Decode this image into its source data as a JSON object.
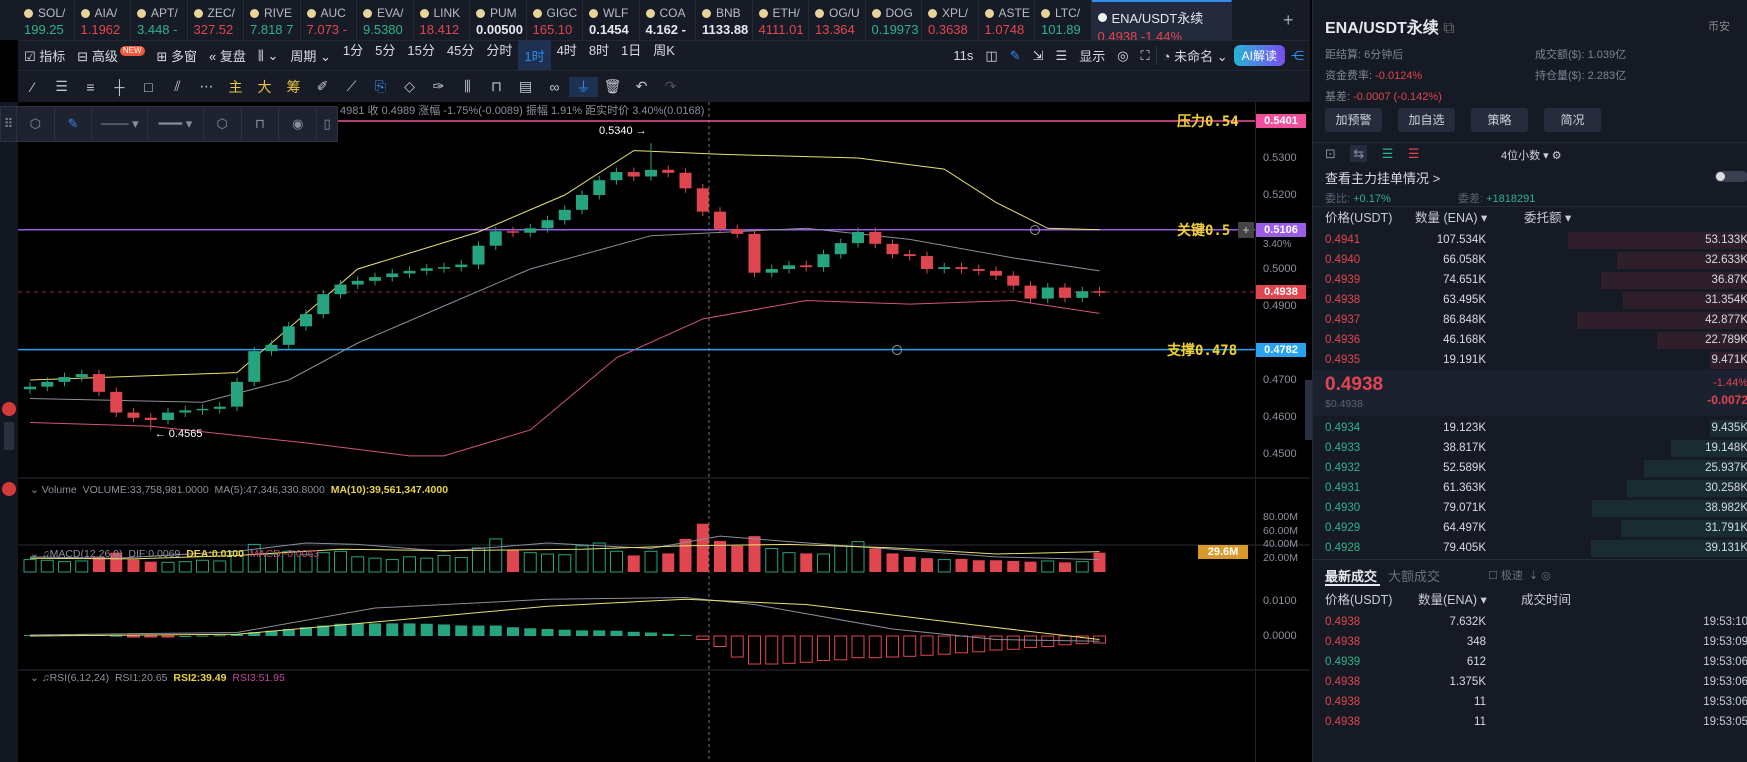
{
  "tickers": [
    {
      "name": "SOL/",
      "price": "199.25",
      "color": "g"
    },
    {
      "name": "AIA/",
      "price": "1.1962",
      "color": "r",
      "badge": "NEW"
    },
    {
      "name": "APT/",
      "price": "3.448 -",
      "color": "g"
    },
    {
      "name": "ZEC/",
      "price": "327.52",
      "color": "r"
    },
    {
      "name": "RIVE",
      "price": "7.818 7",
      "color": "g"
    },
    {
      "name": "AUC",
      "price": "7.073 -",
      "color": "r"
    },
    {
      "name": "EVA/",
      "price": "9.5380",
      "color": "g"
    },
    {
      "name": "LINK",
      "price": "18.412",
      "color": "r"
    },
    {
      "name": "PUM",
      "price": "0.00500",
      "color": "w"
    },
    {
      "name": "GIGC",
      "price": "165.10",
      "color": "r"
    },
    {
      "name": "WLF",
      "price": "0.1454",
      "color": "w"
    },
    {
      "name": "COA",
      "price": "4.162 -",
      "color": "w"
    },
    {
      "name": "BNB",
      "price": "1133.88",
      "color": "w"
    },
    {
      "name": "ETH/",
      "price": "4111.01",
      "color": "r"
    },
    {
      "name": "OG/U",
      "price": "13.364",
      "color": "r"
    },
    {
      "name": "DOG",
      "price": "0.19973",
      "color": "g"
    },
    {
      "name": "XPL/",
      "price": "0.3638",
      "color": "r"
    },
    {
      "name": "ASTE",
      "price": "1.0748",
      "color": "r"
    },
    {
      "name": "LTC/",
      "price": "101.89",
      "color": "g"
    }
  ],
  "active_ticker": {
    "name": "ENA/USDT永续",
    "price": "0.4938",
    "change": "-1.44%"
  },
  "toolbar": {
    "indicator": "指标",
    "advanced": "高级",
    "new_badge": "NEW",
    "multi": "多窗",
    "replay": "复盘",
    "period": "周期",
    "intervals": [
      "1分",
      "5分",
      "15分",
      "45分",
      "分时",
      "1时",
      "4时",
      "8时",
      "1日",
      "周K"
    ],
    "selected_interval": "1时",
    "countdown": "11s",
    "display": "显示",
    "layout": "未命名",
    "ai": "AI解读"
  },
  "draw_tools": {
    "main": "主",
    "big": "大",
    "chip": "筹"
  },
  "info_line": "4981 收 0.4989 涨幅 -1.75%(-0.0089) 振幅 1.91% 距实时价 3.40%(0.0168)",
  "levels": [
    {
      "label": "压力0.54",
      "value": 0.54,
      "tag": "0.5401",
      "color": "#f0509a"
    },
    {
      "label": "关键0.5",
      "value": 0.5106,
      "tag": "0.5106",
      "color": "#9b5de5"
    },
    {
      "label": "支撑0.478",
      "value": 0.4782,
      "tag": "0.4782",
      "color": "#29a3f0"
    }
  ],
  "price_axis": [
    "0.5300",
    "0.5200",
    "0.5000",
    "0.4900",
    "0.4700",
    "0.4600",
    "0.4500"
  ],
  "price_axis_overlay": "3.40%",
  "current_price_tag": "0.4938",
  "volume": {
    "legend_title": "Volume",
    "vol": "VOLUME:33,758,981.0000",
    "ma5": "MA(5):47,346,330.8000",
    "ma10": "MA(10):39,561,347.4000",
    "axis": [
      "80.00M",
      "60.00M",
      "40.00M",
      "20.00M"
    ],
    "tag": "29.6M"
  },
  "macd": {
    "legend": "MACD(12,26,9)",
    "dif": "DIF:0.0069",
    "dea": "DEA:0.0100",
    "macd": "MACD:-0.0063",
    "axis": [
      "0.0100",
      "0.0000"
    ]
  },
  "rsi": {
    "legend": "RSI(6,12,24)",
    "rsi1": "RSI1:20.65",
    "rsi2": "RSI2:39.49",
    "rsi3": "RSI3:51.95"
  },
  "chart_data": {
    "type": "candlestick",
    "interval": "1时",
    "high_label": "0.5340 →",
    "low_label": "← 0.4565",
    "high": 0.534,
    "low": 0.4565,
    "high_index": 36,
    "low_index": 7,
    "closes": [
      0.4682,
      0.4695,
      0.4708,
      0.4716,
      0.4668,
      0.4612,
      0.4598,
      0.4592,
      0.4612,
      0.4618,
      0.4622,
      0.4628,
      0.4695,
      0.4778,
      0.4795,
      0.4845,
      0.4878,
      0.4932,
      0.4958,
      0.4968,
      0.4978,
      0.4988,
      0.4995,
      0.5002,
      0.5005,
      0.5012,
      0.5063,
      0.5102,
      0.5098,
      0.511,
      0.5132,
      0.516,
      0.52,
      0.524,
      0.5262,
      0.525,
      0.5268,
      0.526,
      0.5218,
      0.5155,
      0.5108,
      0.5095,
      0.499,
      0.5,
      0.501,
      0.5005,
      0.504,
      0.507,
      0.51,
      0.5068,
      0.504,
      0.5035,
      0.5,
      0.5005,
      0.5,
      0.4995,
      0.4982,
      0.4955,
      0.492,
      0.495,
      0.4922,
      0.494,
      0.4938
    ],
    "first_open": 0.4675,
    "boll_upper": [
      [
        0,
        0.47
      ],
      [
        12,
        0.472
      ],
      [
        19,
        0.5
      ],
      [
        26,
        0.51
      ],
      [
        31,
        0.52
      ],
      [
        35,
        0.532
      ],
      [
        40,
        0.531
      ],
      [
        48,
        0.53
      ],
      [
        53,
        0.527
      ],
      [
        56,
        0.518
      ],
      [
        59,
        0.511
      ],
      [
        62,
        0.5106
      ]
    ],
    "boll_mid": [
      [
        0,
        0.465
      ],
      [
        10,
        0.464
      ],
      [
        15,
        0.47
      ],
      [
        19,
        0.48
      ],
      [
        24,
        0.49
      ],
      [
        29,
        0.5
      ],
      [
        36,
        0.509
      ],
      [
        45,
        0.511
      ],
      [
        51,
        0.508
      ],
      [
        57,
        0.503
      ],
      [
        62,
        0.4995
      ]
    ],
    "boll_lower": [
      [
        0,
        0.4585
      ],
      [
        7,
        0.4575
      ],
      [
        16,
        0.453
      ],
      [
        22,
        0.4495
      ],
      [
        24,
        0.4495
      ],
      [
        29,
        0.4565
      ],
      [
        34,
        0.476
      ],
      [
        39,
        0.4865
      ],
      [
        45,
        0.4915
      ],
      [
        51,
        0.4905
      ],
      [
        57,
        0.4915
      ],
      [
        62,
        0.488
      ]
    ],
    "volume_m": [
      18,
      17,
      15,
      16,
      22,
      28,
      18,
      15,
      14,
      15,
      17,
      16,
      30,
      40,
      26,
      30,
      25,
      28,
      30,
      22,
      20,
      18,
      22,
      20,
      24,
      21,
      35,
      48,
      32,
      28,
      26,
      25,
      38,
      42,
      30,
      24,
      30,
      27,
      48,
      70,
      45,
      38,
      52,
      34,
      28,
      27,
      26,
      38,
      44,
      34,
      27,
      22,
      20,
      18,
      19,
      17,
      17,
      16,
      15,
      16,
      14,
      15,
      28
    ],
    "vol_ma5": [
      [
        0,
        22
      ],
      [
        5,
        20
      ],
      [
        12,
        30
      ],
      [
        16,
        42
      ],
      [
        19,
        40
      ],
      [
        24,
        30
      ],
      [
        30,
        42
      ],
      [
        36,
        34
      ],
      [
        40,
        52
      ],
      [
        44,
        44
      ],
      [
        50,
        33
      ],
      [
        56,
        22
      ],
      [
        62,
        18
      ]
    ],
    "vol_ma10": [
      [
        0,
        20
      ],
      [
        6,
        19
      ],
      [
        12,
        24
      ],
      [
        18,
        33
      ],
      [
        24,
        31
      ],
      [
        32,
        33
      ],
      [
        38,
        38
      ],
      [
        44,
        40
      ],
      [
        50,
        35
      ],
      [
        56,
        26
      ],
      [
        62,
        29.6
      ]
    ],
    "macd_hist": [
      0.0003,
      0.0004,
      0.0004,
      0.0005,
      0.0003,
      0.0001,
      -0.0001,
      -0.0002,
      -0.0001,
      0,
      0.0001,
      0.0002,
      0.0005,
      0.0011,
      0.0015,
      0.002,
      0.0025,
      0.003,
      0.0035,
      0.0036,
      0.0036,
      0.0036,
      0.0036,
      0.0035,
      0.0033,
      0.003,
      0.003,
      0.003,
      0.0025,
      0.0022,
      0.002,
      0.0018,
      0.0016,
      0.0016,
      0.0015,
      0.0012,
      0.001,
      0.0006,
      0.0003,
      -0.001,
      -0.003,
      -0.006,
      -0.008,
      -0.008,
      -0.0078,
      -0.0075,
      -0.007,
      -0.0068,
      -0.0062,
      -0.0062,
      -0.006,
      -0.0058,
      -0.0055,
      -0.0052,
      -0.0048,
      -0.0045,
      -0.004,
      -0.0038,
      -0.0033,
      -0.003,
      -0.0025,
      -0.0022,
      -0.002
    ],
    "dif": [
      [
        0,
        0.0003
      ],
      [
        12,
        0.001
      ],
      [
        20,
        0.008
      ],
      [
        30,
        0.0105
      ],
      [
        38,
        0.011
      ],
      [
        42,
        0.009
      ],
      [
        50,
        0.002
      ],
      [
        56,
        -0.001
      ],
      [
        62,
        -0.0015
      ]
    ],
    "dea": [
      [
        0,
        0
      ],
      [
        12,
        0.0005
      ],
      [
        20,
        0.004
      ],
      [
        30,
        0.0085
      ],
      [
        38,
        0.0105
      ],
      [
        45,
        0.009
      ],
      [
        55,
        0.003
      ],
      [
        62,
        -0.001
      ]
    ]
  },
  "panel": {
    "title": "ENA/USDT永续",
    "exchange": "币安",
    "settle_label": "距结算:",
    "settle": "6分钟后",
    "turnover_label": "成交额($):",
    "turnover": "1.039亿",
    "funding_label": "资金费率:",
    "funding": "-0.0124%",
    "oi_label": "持仓量($):",
    "oi": "2.283亿",
    "basis_label": "基差:",
    "basis": "-0.0007 (-0.142%)",
    "buttons": [
      "加预警",
      "加自选",
      "策略",
      "简况"
    ],
    "decimals": "4位小数",
    "mainforce": "查看主力挂单情况 >",
    "ratio_label": "委比:",
    "ratio": "+0.17%",
    "diff_label": "委差:",
    "diff": "+1818291",
    "ob_headers": [
      "价格(USDT)",
      "数量 (ENA) ▾",
      "委托额 ▾"
    ],
    "asks": [
      [
        "0.4941",
        "107.534K",
        "53.133K"
      ],
      [
        "0.4940",
        "66.058K",
        "32.633K"
      ],
      [
        "0.4939",
        "74.651K",
        "36.87K"
      ],
      [
        "0.4938",
        "63.495K",
        "31.354K"
      ],
      [
        "0.4937",
        "86.848K",
        "42.877K"
      ],
      [
        "0.4936",
        "46.168K",
        "22.789K"
      ],
      [
        "0.4935",
        "19.191K",
        "9.471K"
      ]
    ],
    "mid_price": "0.4938",
    "mid_usd": "$0.4938",
    "mid_pct": "-1.44%",
    "mid_chg": "-0.0072",
    "bids": [
      [
        "0.4934",
        "19.123K",
        "9.435K"
      ],
      [
        "0.4933",
        "38.817K",
        "19.148K"
      ],
      [
        "0.4932",
        "52.589K",
        "25.937K"
      ],
      [
        "0.4931",
        "61.363K",
        "30.258K"
      ],
      [
        "0.4930",
        "79.071K",
        "38.982K"
      ],
      [
        "0.4929",
        "64.497K",
        "31.791K"
      ],
      [
        "0.4928",
        "79.405K",
        "39.131K"
      ]
    ],
    "trade_tabs": [
      "最新成交",
      "大额成交"
    ],
    "fast": "极速",
    "trade_headers": [
      "价格(USDT)",
      "数量(ENA) ▾",
      "成交时间"
    ],
    "trades": [
      [
        "0.4938",
        "7.632K",
        "19:53:10",
        "r"
      ],
      [
        "0.4938",
        "348",
        "19:53:09",
        "r"
      ],
      [
        "0.4939",
        "612",
        "19:53:06",
        "g"
      ],
      [
        "0.4938",
        "1.375K",
        "19:53:06",
        "r"
      ],
      [
        "0.4938",
        "11",
        "19:53:06",
        "r"
      ],
      [
        "0.4938",
        "11",
        "19:53:05",
        "r"
      ]
    ]
  },
  "colors": {
    "up": "#26a37f",
    "down": "#e0464f",
    "bg": "#000000",
    "panel": "#161a25"
  }
}
